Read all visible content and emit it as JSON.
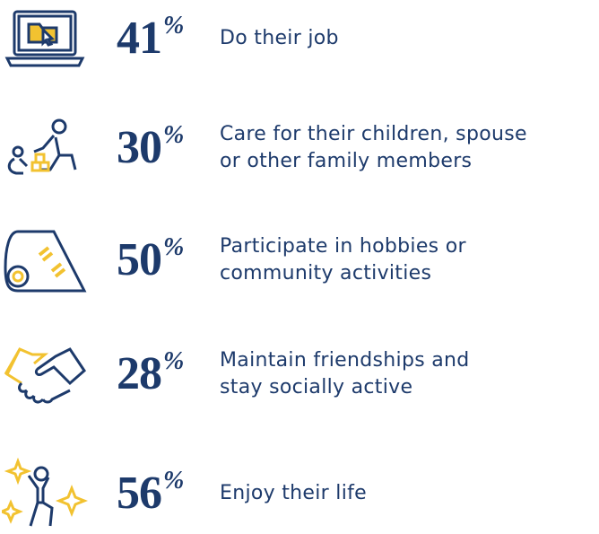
{
  "unit": "%",
  "items": [
    {
      "value": 41,
      "lines": [
        "Do their job"
      ]
    },
    {
      "value": 30,
      "lines": [
        "Care for their children, spouse",
        "or other family members"
      ]
    },
    {
      "value": 50,
      "lines": [
        "Participate in hobbies or",
        "community activities"
      ]
    },
    {
      "value": 28,
      "lines": [
        "Maintain friendships and",
        "stay socially active"
      ]
    },
    {
      "value": 56,
      "lines": [
        "Enjoy their life"
      ]
    }
  ]
}
